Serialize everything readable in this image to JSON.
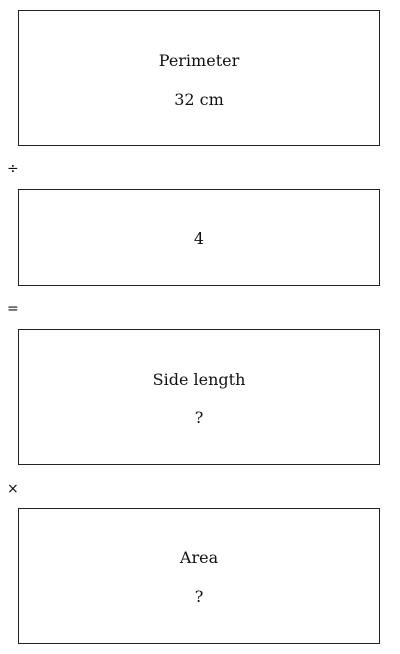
{
  "steps": {
    "perimeter": {
      "label": "Perimeter",
      "value": "32 cm"
    },
    "divisor": {
      "value": "4"
    },
    "side_length": {
      "label": "Side length",
      "value": "?"
    },
    "area": {
      "label": "Area",
      "value": "?"
    }
  },
  "operators": {
    "divide": "÷",
    "equals": "=",
    "multiply": "×"
  }
}
